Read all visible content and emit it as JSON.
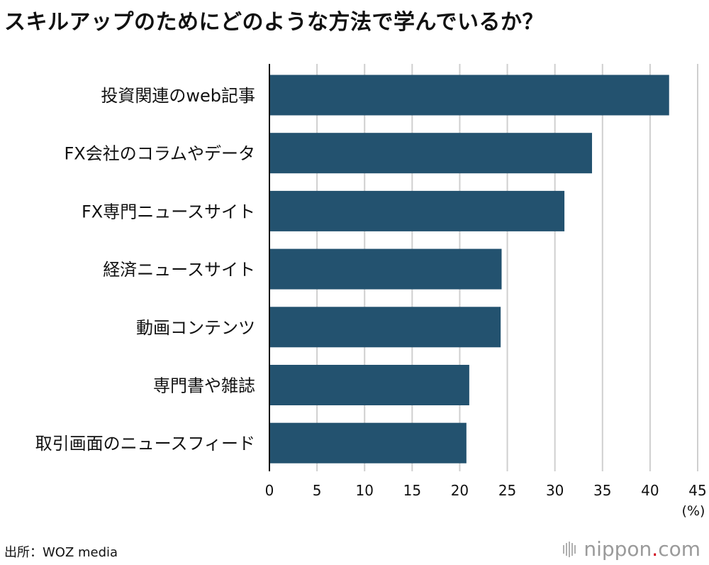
{
  "title": "スキルアップのためにどのような方法で学んでいるか？",
  "source": "出所：WOZ media",
  "brand": {
    "name": "nippon",
    "dot": ".",
    "tld": "com"
  },
  "colors": {
    "bar": "#23526f",
    "grid": "#cfcfcf",
    "axis": "#111111"
  },
  "chart_data": {
    "type": "bar",
    "orientation": "horizontal",
    "categories": [
      "投資関連のweb記事",
      "FX会社のコラムやデータ",
      "FX専門ニュースサイト",
      "経済ニュースサイト",
      "動画コンテンツ",
      "専門書や雑誌",
      "取引画面のニュースフィード"
    ],
    "values": [
      42,
      33.9,
      31,
      24.4,
      24.3,
      21,
      20.7
    ],
    "xlim": [
      0,
      45
    ],
    "xticks": [
      "0",
      "5",
      "10",
      "15",
      "20",
      "25",
      "30",
      "35",
      "40",
      "45"
    ],
    "unit_label": "(%)",
    "grid": true
  }
}
